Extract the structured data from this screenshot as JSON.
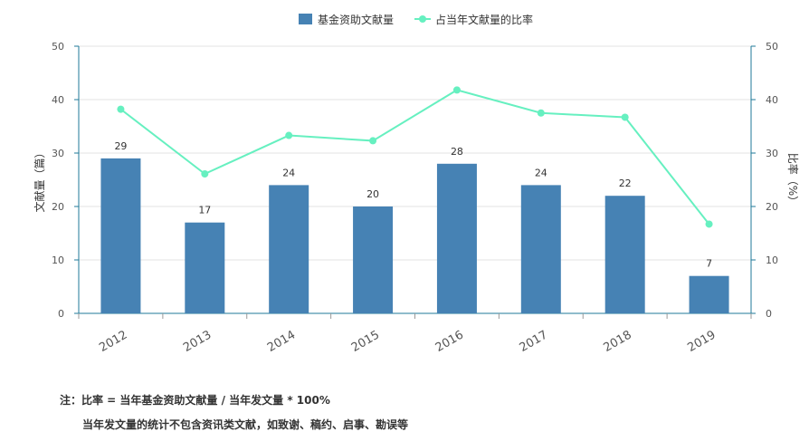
{
  "chart_data": {
    "type": "bar",
    "categories": [
      "2012",
      "2013",
      "2014",
      "2015",
      "2016",
      "2017",
      "2018",
      "2019"
    ],
    "series": [
      {
        "name": "基金资助文献量",
        "type": "bar",
        "axis": "left",
        "values": [
          29,
          17,
          24,
          20,
          28,
          24,
          22,
          7
        ]
      },
      {
        "name": "占当年文献量的比率",
        "type": "line",
        "axis": "right",
        "values": [
          38.2,
          26.1,
          33.3,
          32.3,
          41.8,
          37.5,
          36.7,
          16.7
        ]
      }
    ],
    "ylabel_left": "文献量（篇）",
    "ylabel_right": "比率（%）",
    "ylim_left": [
      0,
      50
    ],
    "ylim_right": [
      0,
      50
    ],
    "yticks": [
      "0",
      "10",
      "20",
      "30",
      "40",
      "50"
    ],
    "grid": true,
    "legend_position": "top-center",
    "colors": {
      "bar": "#4682b4",
      "line": "#66f0c0",
      "axis": "#1f7a99"
    }
  },
  "notes": {
    "line1": "注：比率 = 当年基金资助文献量 / 当年发文量 * 100%",
    "line2": "当年发文量的统计不包含资讯类文献，如致谢、稿约、启事、勘误等"
  }
}
